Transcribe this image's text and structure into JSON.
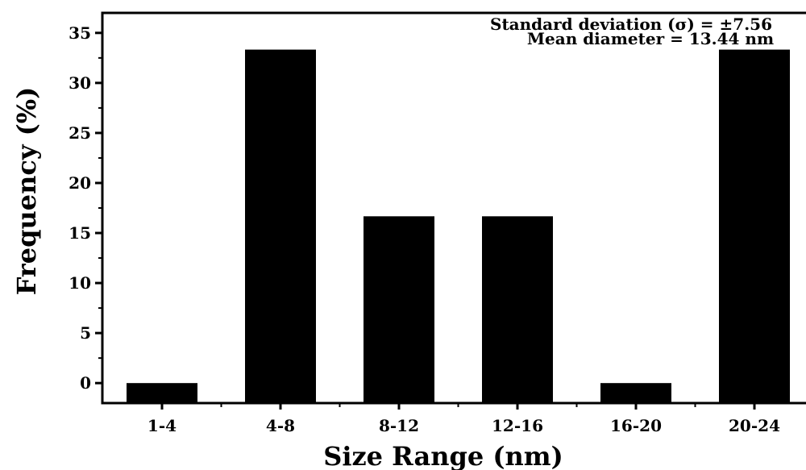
{
  "chart_data": {
    "type": "bar",
    "title": "",
    "xlabel": "Size Range (nm)",
    "ylabel": "Frequency (%)",
    "categories": [
      "1-4",
      "4-8",
      "8-12",
      "12-16",
      "16-20",
      "20-24"
    ],
    "values": [
      0,
      33.33,
      16.67,
      16.67,
      0,
      33.33
    ],
    "ylim": [
      -2,
      37
    ],
    "yticks": [
      0,
      5,
      10,
      15,
      20,
      25,
      30,
      35
    ],
    "ytick_labels": [
      "0",
      "5",
      "10",
      "15",
      "20",
      "25",
      "30",
      "35"
    ],
    "grid": false,
    "bar_color": "#000000",
    "annotations": [
      "Standard deviation (σ) = ±7.56",
      "Mean diameter = 13.44 nm"
    ]
  }
}
